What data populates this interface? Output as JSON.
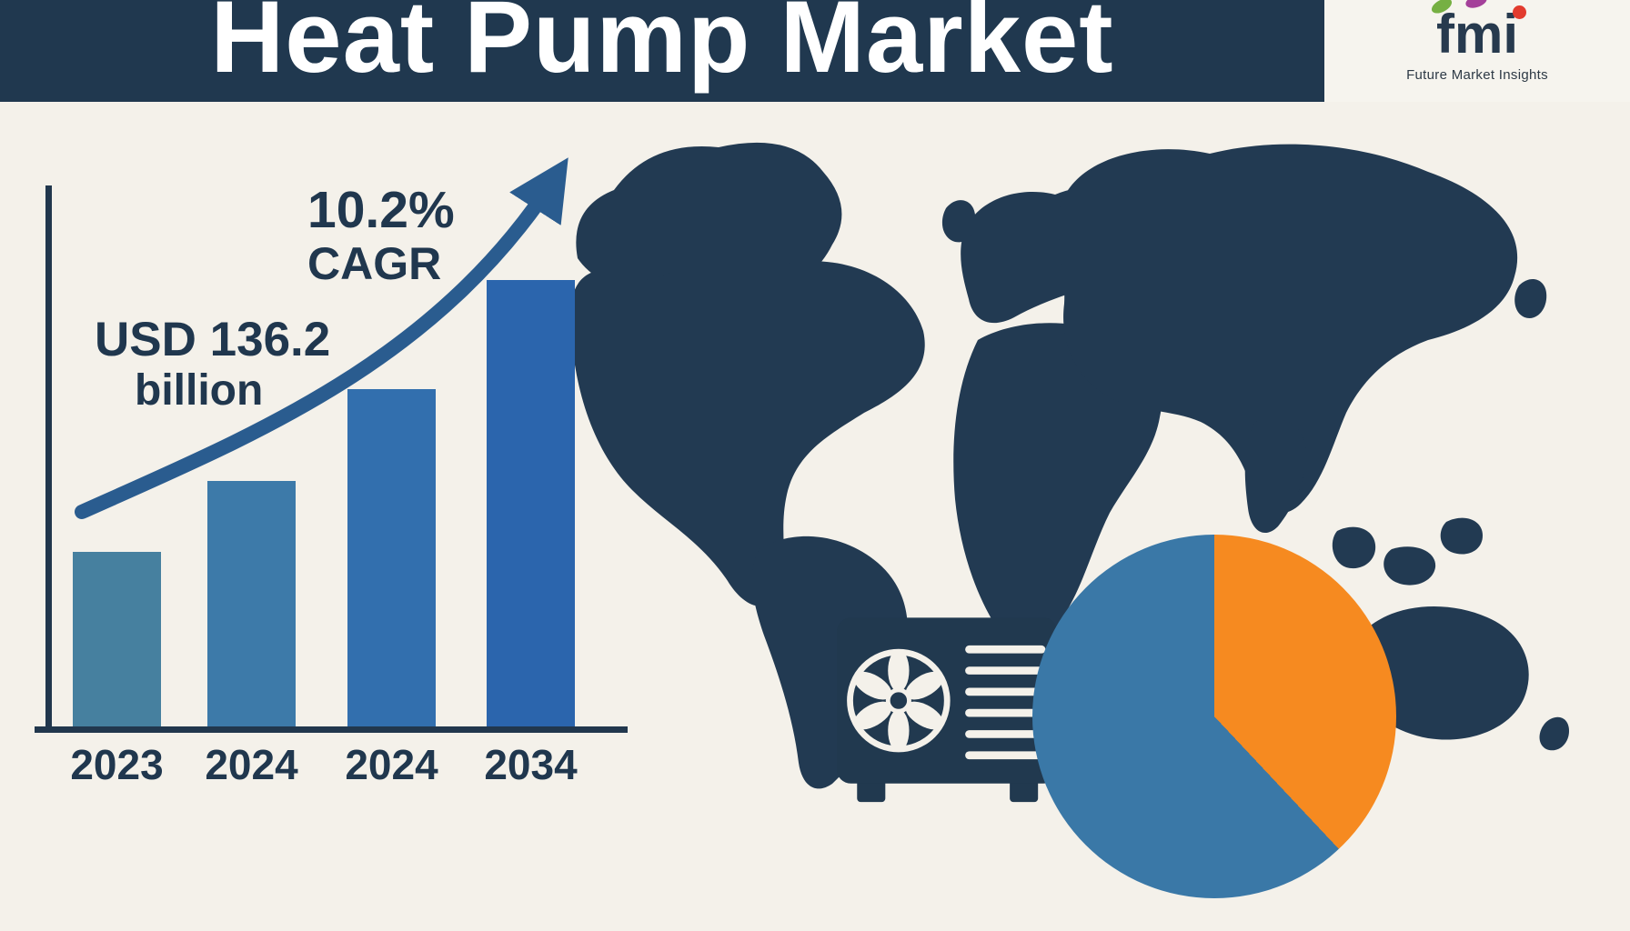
{
  "header": {
    "title": "Heat Pump Market"
  },
  "logo": {
    "wordmark": "fmi",
    "tagline": "Future Market Insights"
  },
  "annotations": {
    "cagr_value": "10.2%",
    "cagr_label": "CAGR",
    "market_value": "USD 136.2",
    "market_unit": "billion"
  },
  "chart_data": [
    {
      "type": "bar",
      "title": "Heat Pump Market",
      "categories": [
        "2023",
        "2024",
        "2024",
        "2034"
      ],
      "values": [
        32,
        45,
        62,
        82
      ],
      "ylim": [
        0,
        100
      ],
      "xlabel": "",
      "ylabel": "",
      "grid": false,
      "bar_colors": [
        "#46809f",
        "#3d7aa9",
        "#326fae",
        "#2b65ad"
      ],
      "annotations": [
        "10.2% CAGR",
        "USD 136.2 billion"
      ]
    },
    {
      "type": "pie",
      "slices": [
        {
          "label": "orange-segment",
          "value": 38,
          "color": "#f68a20"
        },
        {
          "label": "blue-segment",
          "value": 62,
          "color": "#3a78a7"
        }
      ],
      "start_angle_deg": 0,
      "legend_position": "none"
    }
  ],
  "icons": {
    "world_map": "world-map-silhouette",
    "heat_pump": "heat-pump-outdoor-unit-icon",
    "growth_arrow": "curved-growth-arrow-icon"
  },
  "colors": {
    "navy": "#20384f",
    "background": "#f4f1ea",
    "arrow_blue": "#2a5c8f",
    "title_white": "#ffffff"
  }
}
